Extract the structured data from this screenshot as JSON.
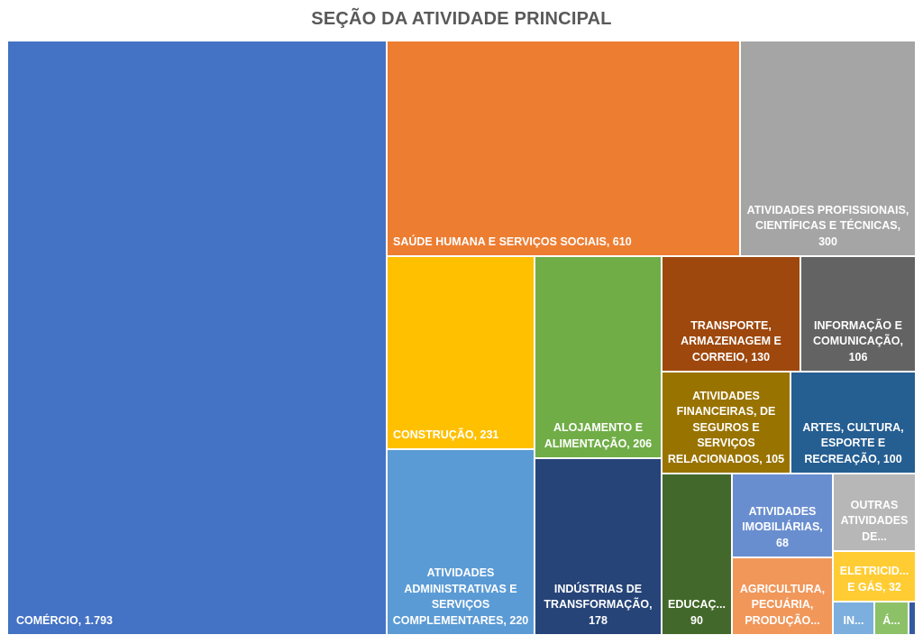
{
  "chart_data": {
    "type": "treemap",
    "title": "SEÇÃO DA ATIVIDADE PRINCIPAL",
    "items": [
      {
        "id": "comercio",
        "name": "COMÉRCIO",
        "value": 1793,
        "label": "COMÉRCIO, 1.793",
        "color": "#4472C4"
      },
      {
        "id": "saude",
        "name": "SAÚDE HUMANA E SERVIÇOS SOCIAIS",
        "value": 610,
        "label": "SAÚDE HUMANA E SERVIÇOS SOCIAIS, 610",
        "color": "#ED7D31"
      },
      {
        "id": "profissionais",
        "name": "ATIVIDADES PROFISSIONAIS, CIENTÍFICAS E TÉCNICAS",
        "value": 300,
        "label": "ATIVIDADES PROFISSIONAIS,\nCIENTÍFICAS E TÉCNICAS,\n300",
        "color": "#A5A5A5"
      },
      {
        "id": "construcao",
        "name": "CONSTRUÇÃO",
        "value": 231,
        "label": "CONSTRUÇÃO, 231",
        "color": "#FFC000"
      },
      {
        "id": "administrativas",
        "name": "ATIVIDADES ADMINISTRATIVAS E SERVIÇOS COMPLEMENTARES",
        "value": 220,
        "label": "ATIVIDADES\nADMINISTRATIVAS E\nSERVIÇOS\nCOMPLEMENTARES, 220",
        "color": "#5B9BD5"
      },
      {
        "id": "alojamento",
        "name": "ALOJAMENTO E ALIMENTAÇÃO",
        "value": 206,
        "label": "ALOJAMENTO E\nALIMENTAÇÃO, 206",
        "color": "#70AD47"
      },
      {
        "id": "industrias",
        "name": "INDÚSTRIAS DE TRANSFORMAÇÃO",
        "value": 178,
        "label": "INDÚSTRIAS DE\nTRANSFORMAÇÃO,\n178",
        "color": "#264478"
      },
      {
        "id": "transporte",
        "name": "TRANSPORTE, ARMAZENAGEM E CORREIO",
        "value": 130,
        "label": "TRANSPORTE,\nARMAZENAGEM E\nCORREIO, 130",
        "color": "#9E480E"
      },
      {
        "id": "informacao",
        "name": "INFORMAÇÃO E COMUNICAÇÃO",
        "value": 106,
        "label": "INFORMAÇÃO E\nCOMUNICAÇÃO,\n106",
        "color": "#636363"
      },
      {
        "id": "financeiras",
        "name": "ATIVIDADES FINANCEIRAS, DE SEGUROS E SERVIÇOS RELACIONADOS",
        "value": 105,
        "label": "ATIVIDADES\nFINANCEIRAS, DE\nSEGUROS E\nSERVIÇOS\nRELACIONADOS, 105",
        "color": "#997300"
      },
      {
        "id": "artes",
        "name": "ARTES, CULTURA, ESPORTE E RECREAÇÃO",
        "value": 100,
        "label": "ARTES, CULTURA,\nESPORTE E\nRECREAÇÃO, 100",
        "color": "#255E91"
      },
      {
        "id": "educacao",
        "name": "EDUCAÇÃO",
        "value": 90,
        "label": "EDUCAÇ...\n90",
        "color": "#43682B"
      },
      {
        "id": "imobiliarias",
        "name": "ATIVIDADES IMOBILIÁRIAS",
        "value": 68,
        "label": "ATIVIDADES\nIMOBILIÁRIAS,\n68",
        "color": "#698ED0"
      },
      {
        "id": "agricultura",
        "name": "AGRICULTURA, PECUÁRIA, PRODUÇÃO...",
        "value": 62,
        "label": "AGRICULTURA,\nPECUÁRIA,\nPRODUÇÃO...",
        "color": "#F1975A"
      },
      {
        "id": "outras",
        "name": "OUTRAS ATIVIDADES DE...",
        "value": 46,
        "label": "OUTRAS\nATIVIDADES\nDE...",
        "color": "#B7B7B7"
      },
      {
        "id": "eletricidade",
        "name": "ELETRICIDADE E GÁS",
        "value": 32,
        "label": "ELETRICID...\nE GÁS, 32",
        "color": "#FFCD33"
      },
      {
        "id": "in",
        "name": "IN...",
        "value": 12,
        "label": "IN...",
        "color": "#7CAFDD"
      },
      {
        "id": "a",
        "name": "Á...",
        "value": 10,
        "label": "Á...",
        "color": "#8CC168"
      },
      {
        "id": "tiny",
        "name": "",
        "value": 2,
        "label": "",
        "color": "#335AA1"
      }
    ]
  }
}
